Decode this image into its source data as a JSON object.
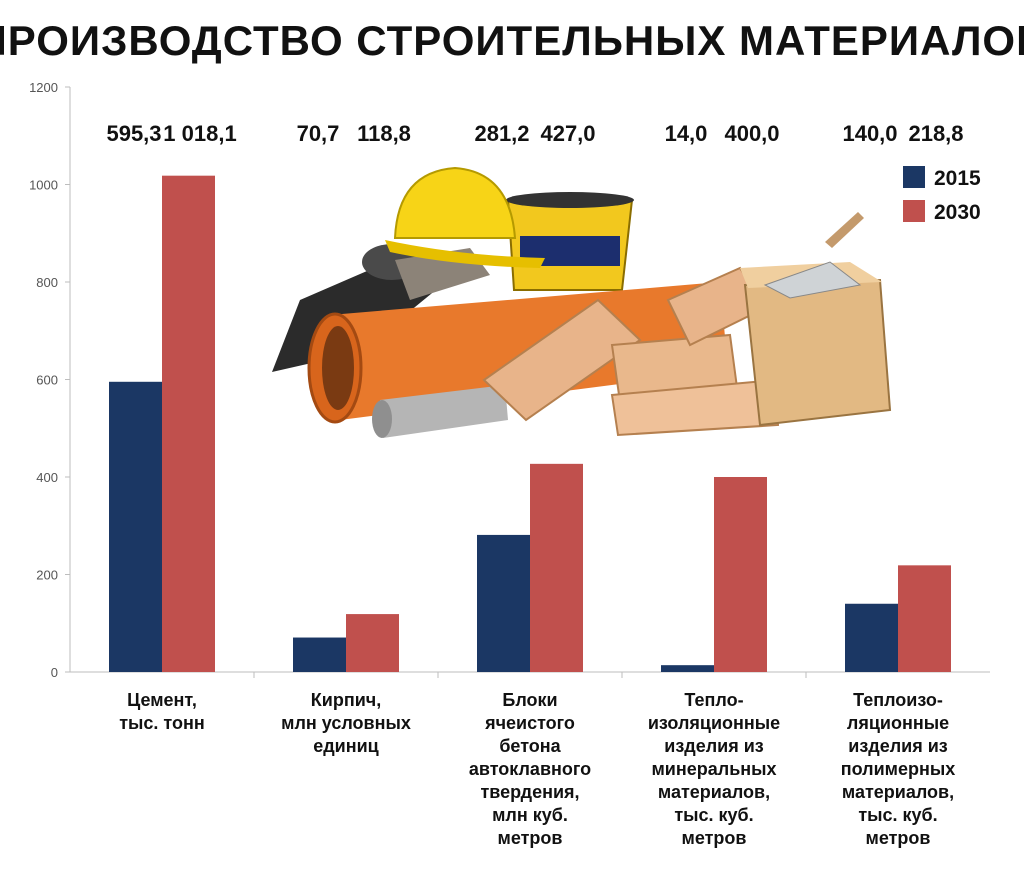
{
  "chart_data": {
    "type": "bar",
    "title": "ПРОИЗВОДСТВО СТРОИТЕЛЬНЫХ МАТЕРИАЛОВ",
    "xlabel": "",
    "ylabel": "",
    "ylim": [
      0,
      1200
    ],
    "yticks": [
      "0",
      "200",
      "400",
      "600",
      "800",
      "1000",
      "1200"
    ],
    "grid": false,
    "legend": "top-right",
    "categories": [
      [
        "Цемент,",
        "тыс. тонн"
      ],
      [
        "Кирпич,",
        "млн условных",
        "единиц"
      ],
      [
        "Блоки",
        "ячеистого",
        "бетона",
        "автоклавного",
        "твердения,",
        "млн куб.",
        "метров"
      ],
      [
        "Тепло-",
        "изоляционные",
        "изделия из",
        "минеральных",
        "материалов,",
        "тыс. куб.",
        "метров"
      ],
      [
        "Теплоизо-",
        "ляционные",
        "изделия из",
        "полимерных",
        "материалов,",
        "тыс. куб.",
        "метров"
      ]
    ],
    "series": [
      {
        "name": "2015",
        "color": "#1b3764",
        "values": [
          595.3,
          70.7,
          281.2,
          14.0,
          140.0
        ],
        "labels": [
          "595,3",
          "70,7",
          "281,2",
          "14,0",
          "140,0"
        ]
      },
      {
        "name": "2030",
        "color": "#c0504d",
        "values": [
          1018.1,
          118.8,
          427.0,
          400.0,
          218.8
        ],
        "labels": [
          "1 018,1",
          "118,8",
          "427,0",
          "400,0",
          "218,8"
        ]
      }
    ]
  }
}
